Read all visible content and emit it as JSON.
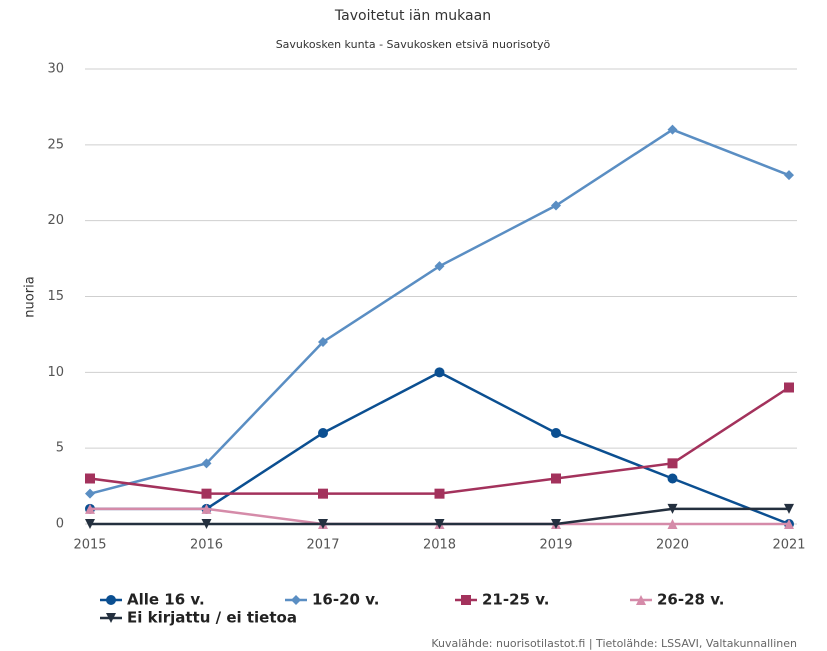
{
  "chart_data": {
    "type": "line",
    "title": "Tavoitetut iän mukaan",
    "subtitle": "Savukosken kunta - Savukosken etsivä nuorisotyö",
    "y_label": "nuoria",
    "source": "Kuvalähde: nuorisotilastot.fi | Tietolähde: LSSAVI, Valtakunnallinen",
    "categories": [
      "2015",
      "2016",
      "2017",
      "2018",
      "2019",
      "2020",
      "2021"
    ],
    "series": [
      {
        "name": "Alle 16 v.",
        "color": "#0b4f91",
        "marker": "circle",
        "values": [
          1,
          1,
          6,
          10,
          6,
          3,
          0
        ]
      },
      {
        "name": "16-20 v.",
        "color": "#5a8ec3",
        "marker": "diamond",
        "values": [
          2,
          4,
          12,
          17,
          21,
          26,
          23
        ]
      },
      {
        "name": "21-25 v.",
        "color": "#a3325c",
        "marker": "square",
        "values": [
          3,
          2,
          2,
          2,
          3,
          4,
          9
        ]
      },
      {
        "name": "26-28 v.",
        "color": "#d58ba9",
        "marker": "triangle",
        "values": [
          1,
          1,
          0,
          0,
          0,
          0,
          0
        ]
      },
      {
        "name": "Ei kirjattu / ei tietoa",
        "color": "#24303f",
        "marker": "triangle-down",
        "values": [
          0,
          0,
          0,
          0,
          0,
          1,
          1
        ]
      }
    ],
    "ylim": [
      0,
      30
    ],
    "yticks": [
      0,
      5,
      10,
      15,
      20,
      25,
      30
    ],
    "grid": true,
    "legend": "bottom"
  }
}
